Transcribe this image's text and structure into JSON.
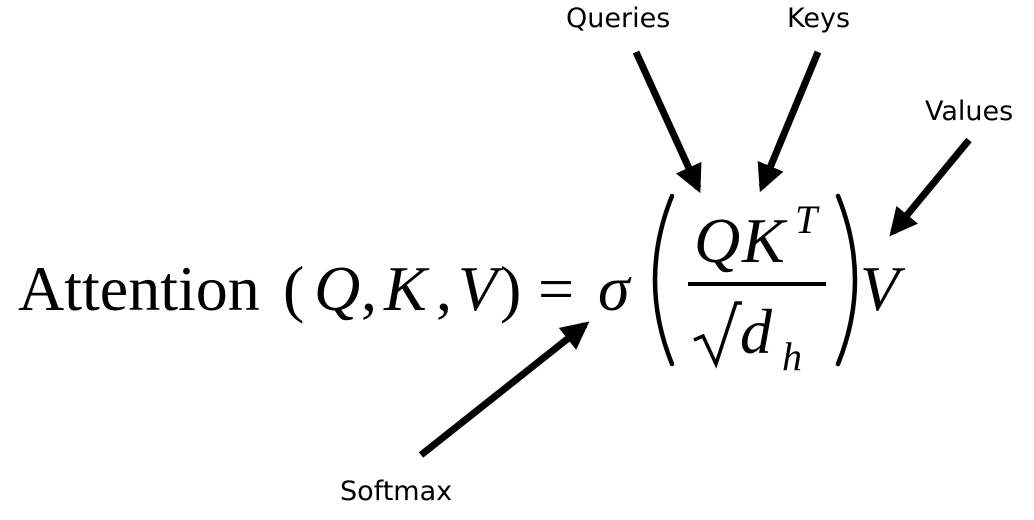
{
  "labels": {
    "queries": "Queries",
    "keys": "Keys",
    "values": "Values",
    "softmax": "Softmax"
  },
  "equation": {
    "function_name": "Attention",
    "open_paren": "(",
    "arg_q": "Q",
    "comma_1": ",",
    "arg_k": "K",
    "comma_2": ",",
    "arg_v": "V",
    "close_paren": ")",
    "equals": "=",
    "sigma": "σ",
    "numerator_q": "Q",
    "numerator_k": "K",
    "transpose": "T",
    "sqrt_symbol": "√",
    "denominator_d": "d",
    "denominator_subscript": "h",
    "trailing_v": "V"
  }
}
